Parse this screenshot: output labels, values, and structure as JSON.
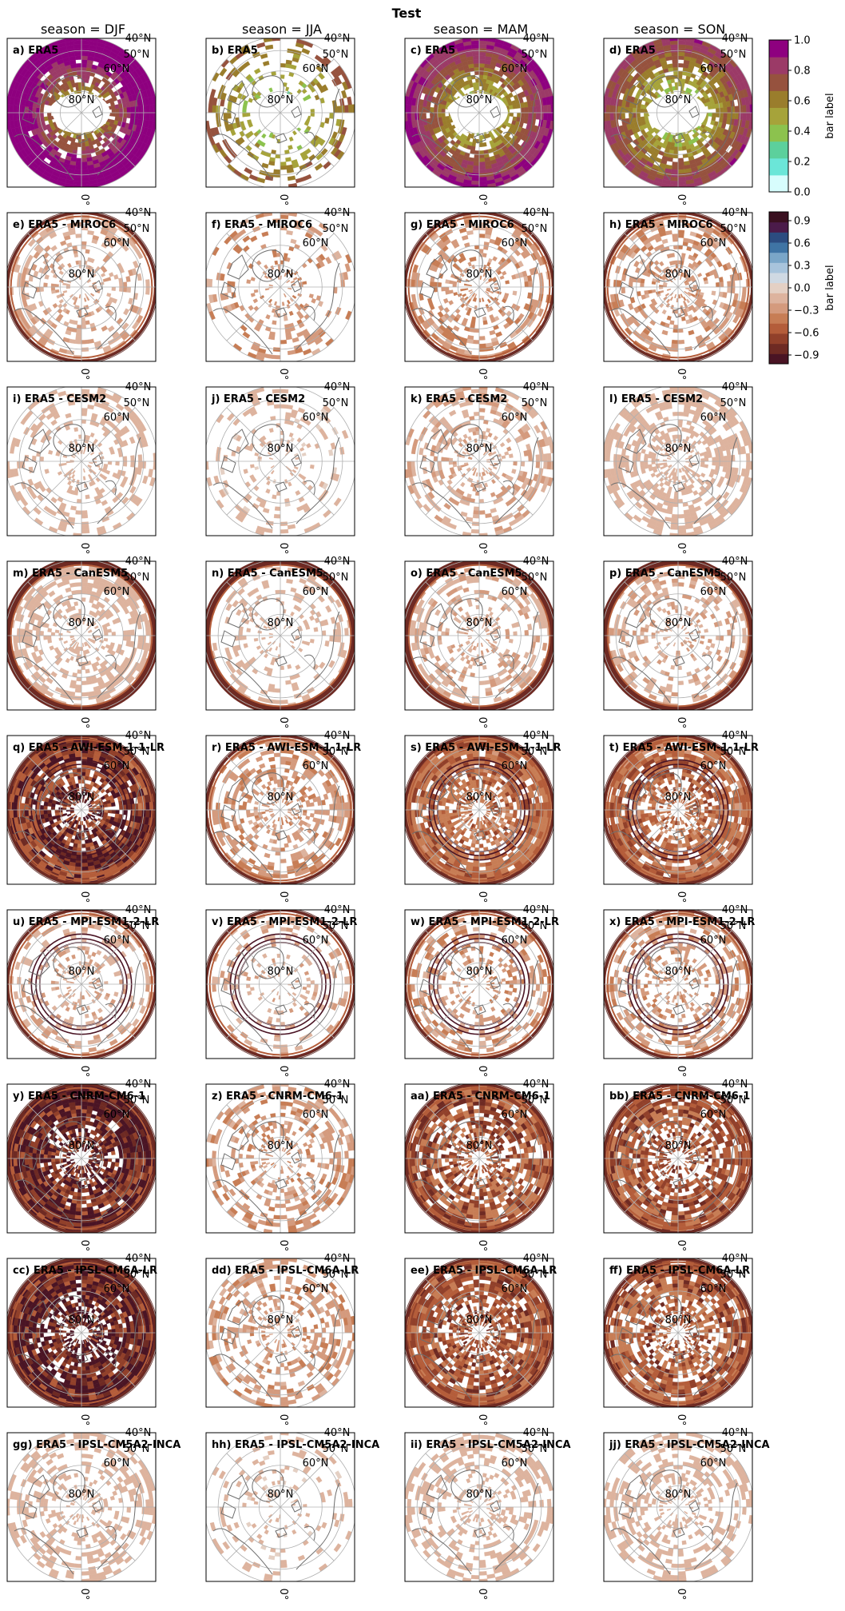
{
  "figure": {
    "title": "Test",
    "column_headers": [
      "season = DJF",
      "season = JJA",
      "season = MAM",
      "season = SON"
    ],
    "latitude_labels": [
      "40°N",
      "50°N",
      "60°N",
      "80°N"
    ],
    "longitude_label": "0°"
  },
  "colorbars": [
    {
      "label": "bar label",
      "ticks": [
        "0.0",
        "0.2",
        "0.4",
        "0.6",
        "0.8",
        "1.0"
      ],
      "range": [
        0,
        1
      ],
      "colors": [
        "#d7fdfd",
        "#6be6d8",
        "#5cd09c",
        "#8cc24e",
        "#a6a33a",
        "#9a7d2c",
        "#96523e",
        "#9b3a67",
        "#8e007f"
      ]
    },
    {
      "label": "bar label",
      "ticks": [
        "0.9",
        "0.6",
        "0.3",
        "0.0",
        "−0.3",
        "−0.6",
        "−0.9"
      ],
      "range": [
        -1,
        1
      ],
      "colors": [
        "#3a1020",
        "#4b1b4a",
        "#2c4c80",
        "#3f74a4",
        "#7aa6c8",
        "#a8c4dc",
        "#cfd9e3",
        "#e4d0c4",
        "#ddb39e",
        "#d49a7d",
        "#c77d55",
        "#b45d3a",
        "#91402a",
        "#6e2a23",
        "#4a1424"
      ]
    }
  ],
  "chart_data": {
    "type": "heatmap",
    "projection": "north-polar-stereographic",
    "columns": [
      "season = DJF",
      "season = JJA",
      "season = MAM",
      "season = SON"
    ],
    "panels": [
      [
        "a) ERA5",
        "b) ERA5",
        "c) ERA5",
        "d) ERA5"
      ],
      [
        "e) ERA5 - MIROC6",
        "f) ERA5 - MIROC6",
        "g) ERA5 - MIROC6",
        "h) ERA5 - MIROC6"
      ],
      [
        "i) ERA5 - CESM2",
        "j) ERA5 - CESM2",
        "k) ERA5 - CESM2",
        "l) ERA5 - CESM2"
      ],
      [
        "m) ERA5 - CanESM5",
        "n) ERA5 - CanESM5",
        "o) ERA5 - CanESM5",
        "p) ERA5 - CanESM5"
      ],
      [
        "q) ERA5 - AWI-ESM-1-1-LR",
        "r) ERA5 - AWI-ESM-1-1-LR",
        "s) ERA5 - AWI-ESM-1-1-LR",
        "t) ERA5 - AWI-ESM-1-1-LR"
      ],
      [
        "u) ERA5 - MPI-ESM1-2-LR",
        "v) ERA5 - MPI-ESM1-2-LR",
        "w) ERA5 - MPI-ESM1-2-LR",
        "x) ERA5 - MPI-ESM1-2-LR"
      ],
      [
        "y) ERA5 - CNRM-CM6-1",
        "z) ERA5 - CNRM-CM6-1",
        "aa) ERA5 - CNRM-CM6-1",
        "bb) ERA5 - CNRM-CM6-1"
      ],
      [
        "cc) ERA5 - IPSL-CM6A-LR",
        "dd) ERA5 - IPSL-CM6A-LR",
        "ee) ERA5 - IPSL-CM6A-LR",
        "ff) ERA5 - IPSL-CM6A-LR"
      ],
      [
        "gg) ERA5 - IPSL-CM5A2-INCA",
        "hh) ERA5 - IPSL-CM5A2-INCA",
        "ii) ERA5 - IPSL-CM5A2-INCA",
        "jj) ERA5 - IPSL-CM5A2-INCA"
      ]
    ],
    "approx_field_level": [
      [
        0.9,
        0.5,
        0.7,
        0.6
      ],
      [
        0.2,
        0.3,
        0.3,
        0.3
      ],
      [
        0.15,
        0.1,
        0.2,
        0.15
      ],
      [
        0.15,
        0.15,
        0.2,
        0.2
      ],
      [
        0.8,
        0.3,
        0.5,
        0.5
      ],
      [
        0.2,
        0.2,
        0.3,
        0.3
      ],
      [
        0.9,
        0.3,
        0.6,
        0.6
      ],
      [
        0.9,
        0.3,
        0.6,
        0.6
      ],
      [
        0.15,
        0.1,
        0.15,
        0.15
      ]
    ],
    "approx_coverage": [
      [
        0.95,
        0.25,
        0.95,
        0.9
      ],
      [
        0.35,
        0.25,
        0.4,
        0.45
      ],
      [
        0.35,
        0.2,
        0.4,
        0.6
      ],
      [
        0.5,
        0.25,
        0.4,
        0.35
      ],
      [
        1.0,
        0.5,
        0.9,
        0.8
      ],
      [
        0.35,
        0.2,
        0.4,
        0.4
      ],
      [
        1.0,
        0.4,
        0.85,
        0.8
      ],
      [
        1.0,
        0.4,
        0.85,
        0.8
      ],
      [
        0.4,
        0.15,
        0.4,
        0.4
      ]
    ],
    "approx_outer_ring": [
      [
        0,
        0,
        0,
        0
      ],
      [
        1,
        0,
        1,
        1
      ],
      [
        0,
        0,
        0,
        0
      ],
      [
        1,
        1,
        1,
        1
      ],
      [
        1,
        1,
        1,
        1
      ],
      [
        1,
        1,
        1,
        1
      ],
      [
        1,
        0,
        1,
        1
      ],
      [
        1,
        0,
        1,
        1
      ],
      [
        0,
        0,
        0,
        0
      ]
    ],
    "approx_inner_rings": [
      [
        0,
        0,
        0,
        0
      ],
      [
        0,
        0,
        0,
        0
      ],
      [
        0,
        0,
        0,
        0
      ],
      [
        0,
        0,
        0,
        0
      ],
      [
        1,
        0,
        1,
        1
      ],
      [
        1,
        1,
        1,
        1
      ],
      [
        0,
        0,
        0,
        0
      ],
      [
        0,
        0,
        0,
        0
      ],
      [
        0,
        0,
        0,
        0
      ]
    ]
  }
}
